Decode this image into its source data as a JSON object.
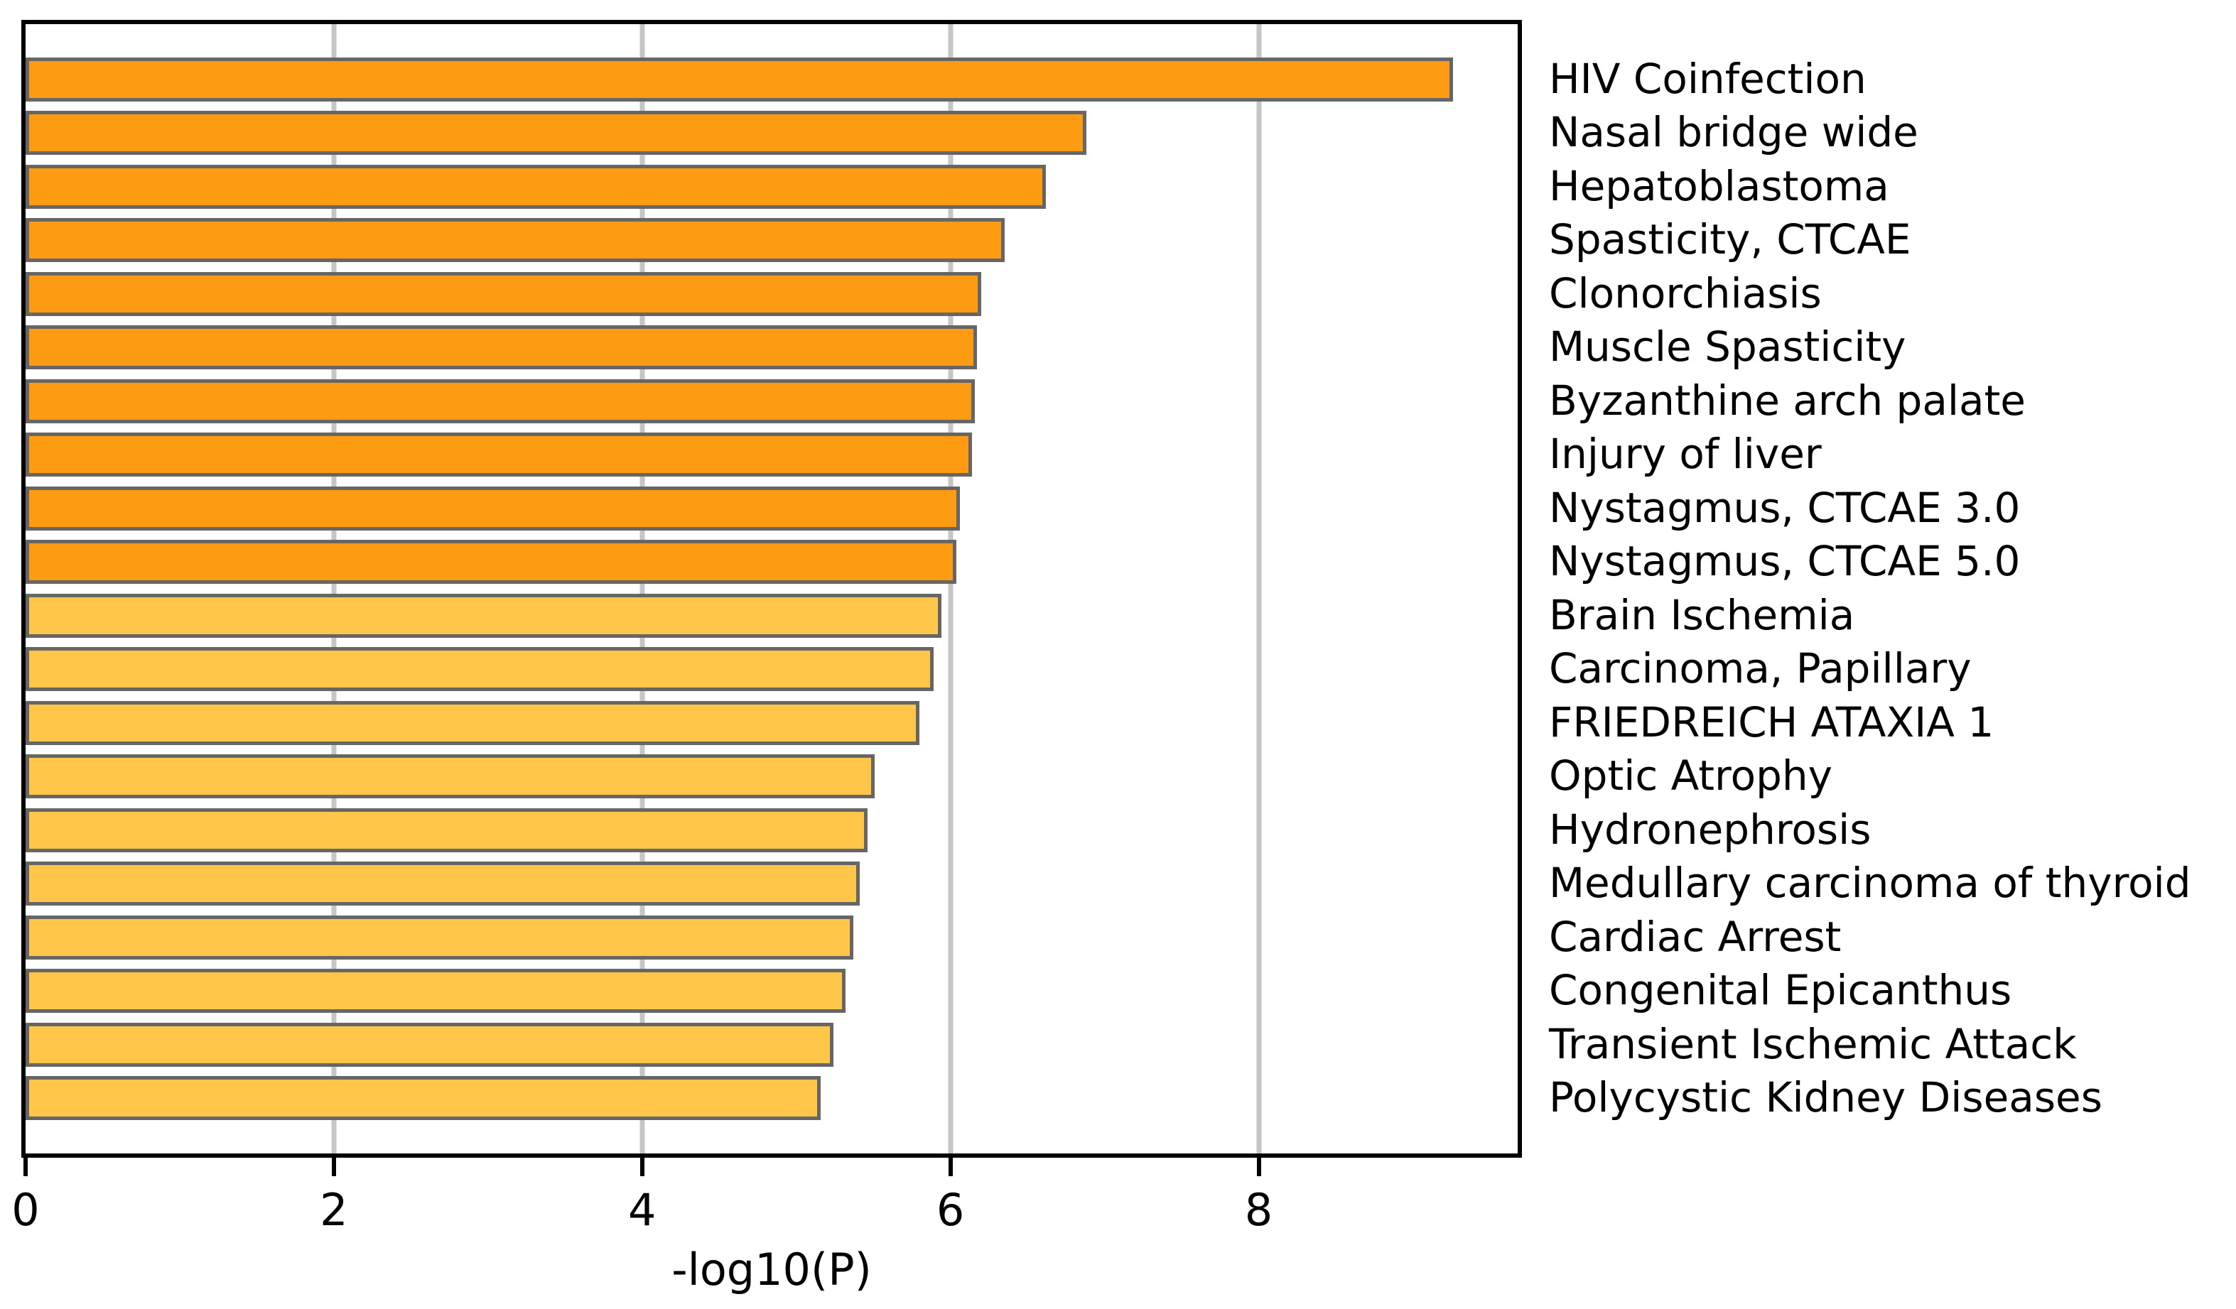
{
  "figure": {
    "background": "#FFFFFF",
    "box_border_color": "#000000",
    "grid_color": "#C6C6C6",
    "bar_border_color": "#666666",
    "bar_color_top_group": "#FD9C12",
    "bar_color_bottom_group": "#FFC649",
    "text_color": "#000000"
  },
  "chart_data": {
    "type": "bar",
    "orientation": "horizontal",
    "title": "",
    "xlabel": "-log10(P)",
    "ylabel": "",
    "xlim": [
      0,
      9.68
    ],
    "xticks": [
      0,
      2,
      4,
      6,
      8
    ],
    "grid": true,
    "legend": "none",
    "categories": [
      "HIV Coinfection",
      "Nasal bridge wide",
      "Hepatoblastoma",
      "Spasticity, CTCAE",
      "Clonorchiasis",
      "Muscle Spasticity",
      "Byzanthine arch palate",
      "Injury of liver",
      "Nystagmus, CTCAE 3.0",
      "Nystagmus, CTCAE 5.0",
      "Brain Ischemia",
      "Carcinoma, Papillary",
      "FRIEDREICH ATAXIA 1",
      "Optic Atrophy",
      "Hydronephrosis",
      "Medullary carcinoma of thyroid",
      "Cardiac Arrest",
      "Congenital Epicanthus",
      "Transient Ischemic Attack",
      "Polycystic Kidney Diseases"
    ],
    "values": [
      9.26,
      6.88,
      6.62,
      6.35,
      6.2,
      6.17,
      6.16,
      6.14,
      6.06,
      6.04,
      5.94,
      5.89,
      5.8,
      5.51,
      5.46,
      5.41,
      5.37,
      5.32,
      5.24,
      5.16
    ],
    "bar_colors": [
      "#FD9C12",
      "#FD9C12",
      "#FD9C12",
      "#FD9C12",
      "#FD9C12",
      "#FD9C12",
      "#FD9C12",
      "#FD9C12",
      "#FD9C12",
      "#FD9C12",
      "#FFC649",
      "#FFC649",
      "#FFC649",
      "#FFC649",
      "#FFC649",
      "#FFC649",
      "#FFC649",
      "#FFC649",
      "#FFC649",
      "#FFC649"
    ]
  }
}
